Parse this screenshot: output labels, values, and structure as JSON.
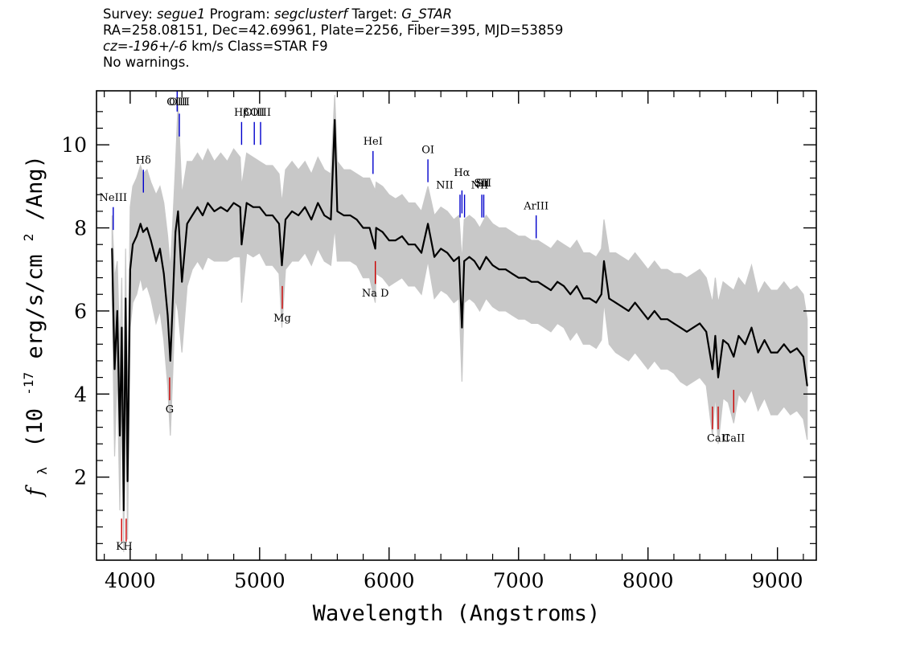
{
  "header": {
    "survey_label": "Survey:",
    "survey": "segue1",
    "program_label": "Program:",
    "program": "segclusterf",
    "target_label": "Target:",
    "target": "G_STAR",
    "line2": "RA=258.08151, Dec=42.69961, Plate=2256, Fiber=395, MJD=53859",
    "cz_label": "cz=",
    "cz_value": "-196+/-6",
    "cz_units": "km/s Class=STAR F9",
    "warnings": "No warnings."
  },
  "chart_data": {
    "type": "line",
    "title": "",
    "xlabel": "Wavelength (Angstroms)",
    "ylabel": "f_λ (10^-17 erg/s/cm^2/Ang)",
    "ylabel_parts": {
      "f": "f",
      "sub": "λ",
      "pre": "(10",
      "exp": "-17",
      "mid": " erg/s/cm",
      "exp2": "2",
      "post": "/Ang)"
    },
    "xlim": [
      3740,
      9300
    ],
    "ylim": [
      0.0,
      11.3
    ],
    "xticks": [
      4000,
      5000,
      6000,
      7000,
      8000,
      9000
    ],
    "xtick_labels": [
      "4000",
      "5000",
      "6000",
      "7000",
      "8000",
      "9000"
    ],
    "yticks": [
      2,
      4,
      6,
      8,
      10
    ],
    "ytick_labels": [
      "2",
      "4",
      "6",
      "8",
      "10"
    ],
    "grid": false,
    "series": [
      {
        "color": "#000000",
        "x": [
          3860,
          3880,
          3900,
          3920,
          3935,
          3950,
          3965,
          3980,
          4000,
          4020,
          4050,
          4080,
          4100,
          4130,
          4160,
          4200,
          4230,
          4260,
          4290,
          4310,
          4330,
          4350,
          4370,
          4400,
          4440,
          4480,
          4520,
          4560,
          4600,
          4650,
          4700,
          4750,
          4800,
          4850,
          4861,
          4900,
          4950,
          5000,
          5050,
          5100,
          5150,
          5172,
          5200,
          5250,
          5300,
          5350,
          5400,
          5450,
          5500,
          5550,
          5580,
          5600,
          5650,
          5700,
          5750,
          5800,
          5850,
          5893,
          5900,
          5950,
          6000,
          6050,
          6100,
          6150,
          6200,
          6250,
          6300,
          6350,
          6400,
          6450,
          6500,
          6540,
          6563,
          6580,
          6620,
          6660,
          6700,
          6750,
          6800,
          6850,
          6900,
          6950,
          7000,
          7050,
          7100,
          7150,
          7200,
          7250,
          7300,
          7350,
          7400,
          7450,
          7500,
          7550,
          7600,
          7640,
          7660,
          7700,
          7750,
          7800,
          7850,
          7900,
          7950,
          8000,
          8050,
          8100,
          8150,
          8200,
          8250,
          8300,
          8350,
          8400,
          8450,
          8498,
          8520,
          8542,
          8580,
          8620,
          8662,
          8700,
          8750,
          8800,
          8850,
          8900,
          8950,
          9000,
          9050,
          9100,
          9150,
          9200,
          9230
        ],
        "y": [
          7.5,
          4.6,
          6.0,
          3.0,
          5.6,
          1.2,
          6.3,
          1.9,
          7.0,
          7.6,
          7.8,
          8.1,
          7.9,
          8.0,
          7.7,
          7.2,
          7.5,
          6.9,
          5.9,
          4.8,
          6.3,
          7.9,
          8.4,
          6.7,
          8.1,
          8.3,
          8.5,
          8.3,
          8.6,
          8.4,
          8.5,
          8.4,
          8.6,
          8.5,
          7.6,
          8.6,
          8.5,
          8.5,
          8.3,
          8.3,
          8.1,
          7.1,
          8.2,
          8.4,
          8.3,
          8.5,
          8.2,
          8.6,
          8.3,
          8.2,
          10.6,
          8.4,
          8.3,
          8.3,
          8.2,
          8.0,
          8.0,
          7.5,
          8.0,
          7.9,
          7.7,
          7.7,
          7.8,
          7.6,
          7.6,
          7.4,
          8.1,
          7.3,
          7.5,
          7.4,
          7.2,
          7.3,
          5.6,
          7.2,
          7.3,
          7.2,
          7.0,
          7.3,
          7.1,
          7.0,
          7.0,
          6.9,
          6.8,
          6.8,
          6.7,
          6.7,
          6.6,
          6.5,
          6.7,
          6.6,
          6.4,
          6.6,
          6.3,
          6.3,
          6.2,
          6.4,
          7.2,
          6.3,
          6.2,
          6.1,
          6.0,
          6.2,
          6.0,
          5.8,
          6.0,
          5.8,
          5.8,
          5.7,
          5.6,
          5.5,
          5.6,
          5.7,
          5.5,
          4.6,
          5.4,
          4.4,
          5.3,
          5.2,
          4.9,
          5.4,
          5.2,
          5.6,
          5.0,
          5.3,
          5.0,
          5.0,
          5.2,
          5.0,
          5.1,
          4.9,
          4.2
        ]
      }
    ],
    "error_band": {
      "color": "#c8c8c8",
      "upper": [
        8.3,
        6.8,
        7.2,
        5.0,
        6.8,
        3.5,
        7.5,
        3.6,
        8.5,
        9.0,
        9.2,
        9.5,
        9.3,
        9.4,
        9.1,
        8.8,
        9.0,
        8.6,
        7.8,
        7.0,
        8.2,
        9.5,
        11.0,
        8.8,
        9.6,
        9.6,
        9.8,
        9.6,
        9.9,
        9.6,
        9.8,
        9.6,
        9.9,
        9.7,
        9.0,
        9.8,
        9.7,
        9.6,
        9.5,
        9.5,
        9.3,
        8.6,
        9.4,
        9.6,
        9.4,
        9.6,
        9.3,
        9.7,
        9.4,
        9.3,
        11.2,
        9.6,
        9.4,
        9.4,
        9.3,
        9.2,
        9.2,
        8.9,
        9.1,
        9.0,
        8.8,
        8.7,
        8.8,
        8.6,
        8.6,
        8.4,
        9.0,
        8.3,
        8.5,
        8.4,
        8.2,
        8.3,
        7.2,
        8.2,
        8.3,
        8.2,
        8.0,
        8.3,
        8.1,
        8.0,
        8.0,
        7.9,
        7.8,
        7.8,
        7.7,
        7.7,
        7.6,
        7.5,
        7.7,
        7.6,
        7.5,
        7.7,
        7.4,
        7.4,
        7.3,
        7.5,
        8.2,
        7.4,
        7.4,
        7.3,
        7.2,
        7.4,
        7.2,
        7.0,
        7.2,
        7.0,
        7.0,
        6.9,
        6.9,
        6.8,
        6.9,
        7.0,
        6.8,
        6.2,
        6.8,
        6.2,
        6.7,
        6.6,
        6.5,
        6.8,
        6.6,
        7.1,
        6.4,
        6.7,
        6.5,
        6.5,
        6.7,
        6.5,
        6.6,
        6.4,
        5.8
      ],
      "lower": [
        6.5,
        2.5,
        4.6,
        1.2,
        4.2,
        0.2,
        4.8,
        0.5,
        5.6,
        6.2,
        6.4,
        6.8,
        6.5,
        6.6,
        6.3,
        5.7,
        6.0,
        5.3,
        4.2,
        3.0,
        4.6,
        6.3,
        6.0,
        5.0,
        6.6,
        7.0,
        7.2,
        7.0,
        7.3,
        7.2,
        7.2,
        7.2,
        7.3,
        7.3,
        6.2,
        7.4,
        7.3,
        7.4,
        7.1,
        7.1,
        6.9,
        5.6,
        7.0,
        7.2,
        7.2,
        7.4,
        7.1,
        7.5,
        7.2,
        7.1,
        8.0,
        7.2,
        7.2,
        7.2,
        7.1,
        6.8,
        6.8,
        6.2,
        6.9,
        6.8,
        6.6,
        6.7,
        6.8,
        6.6,
        6.6,
        6.4,
        7.2,
        6.3,
        6.5,
        6.4,
        6.2,
        6.3,
        4.3,
        6.2,
        6.3,
        6.2,
        6.0,
        6.3,
        6.1,
        6.0,
        6.0,
        5.9,
        5.8,
        5.8,
        5.7,
        5.7,
        5.6,
        5.5,
        5.7,
        5.6,
        5.3,
        5.5,
        5.2,
        5.2,
        5.1,
        5.3,
        6.2,
        5.2,
        5.0,
        4.9,
        4.8,
        5.0,
        4.8,
        4.6,
        4.8,
        4.6,
        4.6,
        4.5,
        4.3,
        4.2,
        4.3,
        4.4,
        4.2,
        3.0,
        4.0,
        2.8,
        3.9,
        3.8,
        3.3,
        4.0,
        3.8,
        4.1,
        3.6,
        3.9,
        3.5,
        3.5,
        3.7,
        3.5,
        3.6,
        3.4,
        2.9
      ]
    },
    "emission_lines": [
      {
        "label": "NeIII",
        "x": 3869,
        "y0": 7.95,
        "y1": 8.5,
        "lx": 3869,
        "ly": 8.65
      },
      {
        "label": "OIII",
        "x": 4363,
        "y0": 10.8,
        "y1": 11.3,
        "lx": 4363,
        "ly": 10.95
      },
      {
        "label": "OIII",
        "x": 4380,
        "y0": 10.2,
        "y1": 10.75,
        "lx": 4380,
        "ly": 10.95
      },
      {
        "label": "Hδ",
        "x": 4102,
        "y0": 8.85,
        "y1": 9.4,
        "lx": 4102,
        "ly": 9.55
      },
      {
        "label": "Hβ",
        "x": 4861,
        "y0": 10.0,
        "y1": 10.55,
        "lx": 4861,
        "ly": 10.7
      },
      {
        "label": "OIII",
        "x": 4959,
        "y0": 10.0,
        "y1": 10.55,
        "lx": 4959,
        "ly": 10.7
      },
      {
        "label": "OIII",
        "x": 5007,
        "y0": 10.0,
        "y1": 10.55,
        "lx": 5007,
        "ly": 10.7
      },
      {
        "label": "HeI",
        "x": 5876,
        "y0": 9.3,
        "y1": 9.85,
        "lx": 5876,
        "ly": 10.0
      },
      {
        "label": "OI",
        "x": 6300,
        "y0": 9.1,
        "y1": 9.65,
        "lx": 6300,
        "ly": 9.8
      },
      {
        "label": "NII",
        "x": 6548,
        "y0": 8.25,
        "y1": 8.8,
        "lx": 6430,
        "ly": 8.95
      },
      {
        "label": "Hα",
        "x": 6563,
        "y0": 8.35,
        "y1": 8.9,
        "lx": 6563,
        "ly": 9.25
      },
      {
        "label": "NII",
        "x": 6583,
        "y0": 8.25,
        "y1": 8.8,
        "lx": 6700,
        "ly": 8.95
      },
      {
        "label": "SII",
        "x": 6716,
        "y0": 8.25,
        "y1": 8.8,
        "lx": 6716,
        "ly": 9.0
      },
      {
        "label": "SII",
        "x": 6731,
        "y0": 8.25,
        "y1": 8.8,
        "lx": 6731,
        "ly": 9.0
      },
      {
        "label": "ArIII",
        "x": 7136,
        "y0": 7.75,
        "y1": 8.3,
        "lx": 7136,
        "ly": 8.45
      }
    ],
    "absorption_lines": [
      {
        "label": "K",
        "x": 3934,
        "y0": 0.45,
        "y1": 1.0,
        "lx": 3920,
        "ly": 0.25
      },
      {
        "label": "H",
        "x": 3969,
        "y0": 0.45,
        "y1": 1.0,
        "lx": 3982,
        "ly": 0.25
      },
      {
        "label": "G",
        "x": 4305,
        "y0": 3.85,
        "y1": 4.4,
        "lx": 4305,
        "ly": 3.55
      },
      {
        "label": "Mg",
        "x": 5175,
        "y0": 6.05,
        "y1": 6.6,
        "lx": 5175,
        "ly": 5.75
      },
      {
        "label": "Na D",
        "x": 5894,
        "y0": 6.65,
        "y1": 7.2,
        "lx": 5894,
        "ly": 6.35
      },
      {
        "label": "CaII",
        "x": 8498,
        "y0": 3.15,
        "y1": 3.7,
        "lx": 8542,
        "ly": 2.85
      },
      {
        "label": "CaII",
        "x": 8542,
        "y0": 3.15,
        "y1": 3.7,
        "lx": 8542,
        "ly": 2.85
      },
      {
        "label": "CaII",
        "x": 8662,
        "y0": 3.55,
        "y1": 4.1,
        "lx": 8662,
        "ly": 2.85
      }
    ],
    "emission_color": "#0000cc",
    "absorption_color": "#cc0000"
  }
}
